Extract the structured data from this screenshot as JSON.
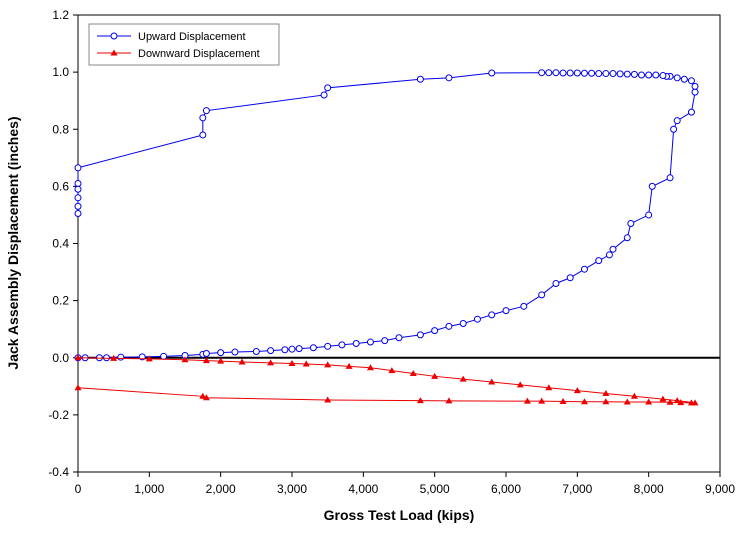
{
  "chart_data": {
    "type": "line",
    "xlabel": "Gross Test Load (kips)",
    "ylabel": "Jack Assembly Displacement (inches)",
    "xlim": [
      0,
      9000
    ],
    "ylim": [
      -0.4,
      1.2
    ],
    "x_ticks": [
      "0",
      "1,000",
      "2,000",
      "3,000",
      "4,000",
      "5,000",
      "6,000",
      "7,000",
      "8,000",
      "9,000"
    ],
    "y_ticks": [
      "-0.4",
      "-0.2",
      "0.0",
      "0.2",
      "0.4",
      "0.6",
      "0.8",
      "1.0",
      "1.2"
    ],
    "x_tick_values": [
      0,
      1000,
      2000,
      3000,
      4000,
      5000,
      6000,
      7000,
      8000,
      9000
    ],
    "y_tick_values": [
      -0.4,
      -0.2,
      0.0,
      0.2,
      0.4,
      0.6,
      0.8,
      1.0,
      1.2
    ],
    "grid": false,
    "zero_line": true,
    "legend_position": "top-left",
    "series": [
      {
        "name": "Upward Displacement",
        "color": "#0000ee",
        "marker": "circle",
        "x": [
          0,
          100,
          300,
          400,
          600,
          900,
          1200,
          1500,
          1750,
          1800,
          2000,
          2200,
          2500,
          2700,
          2900,
          3000,
          3100,
          3300,
          3500,
          3700,
          3900,
          4100,
          4300,
          4500,
          4800,
          5000,
          5200,
          5400,
          5600,
          5800,
          6000,
          6250,
          6500,
          6700,
          6900,
          7100,
          7300,
          7450,
          7500,
          7700,
          7750,
          8000,
          8050,
          8300,
          8350,
          8400,
          8600,
          8650,
          8650,
          8600,
          8500,
          8400,
          8300,
          8250,
          8200,
          8100,
          8000,
          7900,
          7800,
          7700,
          7600,
          7500,
          7400,
          7300,
          7200,
          7100,
          7000,
          6900,
          6800,
          6700,
          6600,
          6500,
          5800,
          5200,
          4800,
          3500,
          3450,
          1800,
          1750,
          1750,
          0,
          0,
          0,
          0,
          0,
          0
        ],
        "y": [
          0.0,
          0.0,
          0.0,
          0.0,
          0.002,
          0.003,
          0.005,
          0.008,
          0.012,
          0.015,
          0.018,
          0.02,
          0.022,
          0.025,
          0.028,
          0.03,
          0.032,
          0.035,
          0.04,
          0.045,
          0.05,
          0.055,
          0.06,
          0.07,
          0.08,
          0.095,
          0.11,
          0.12,
          0.135,
          0.15,
          0.165,
          0.18,
          0.22,
          0.26,
          0.28,
          0.31,
          0.34,
          0.36,
          0.38,
          0.42,
          0.47,
          0.5,
          0.6,
          0.63,
          0.8,
          0.83,
          0.86,
          0.93,
          0.95,
          0.97,
          0.975,
          0.98,
          0.985,
          0.985,
          0.988,
          0.99,
          0.99,
          0.99,
          0.992,
          0.993,
          0.994,
          0.995,
          0.995,
          0.995,
          0.996,
          0.996,
          0.997,
          0.997,
          0.997,
          0.998,
          0.998,
          0.998,
          0.997,
          0.98,
          0.975,
          0.945,
          0.92,
          0.865,
          0.84,
          0.78,
          0.665,
          0.61,
          0.59,
          0.56,
          0.53,
          0.505
        ]
      },
      {
        "name": "Downward Displacement",
        "color": "#ee0000",
        "marker": "triangle",
        "x": [
          0,
          500,
          1000,
          1500,
          1800,
          2000,
          2300,
          2700,
          3000,
          3200,
          3500,
          3800,
          4100,
          4400,
          4700,
          5000,
          5400,
          5800,
          6200,
          6600,
          7000,
          7400,
          7800,
          8200,
          8400,
          8650,
          8600,
          8450,
          8300,
          8000,
          7700,
          7400,
          7100,
          6800,
          6500,
          6300,
          5200,
          4800,
          3500,
          1800,
          1750,
          0
        ],
        "y": [
          0.0,
          -0.002,
          -0.004,
          -0.007,
          -0.01,
          -0.012,
          -0.015,
          -0.018,
          -0.02,
          -0.022,
          -0.025,
          -0.03,
          -0.035,
          -0.045,
          -0.055,
          -0.065,
          -0.075,
          -0.085,
          -0.095,
          -0.105,
          -0.115,
          -0.125,
          -0.135,
          -0.145,
          -0.15,
          -0.158,
          -0.158,
          -0.157,
          -0.156,
          -0.155,
          -0.155,
          -0.154,
          -0.154,
          -0.153,
          -0.152,
          -0.152,
          -0.151,
          -0.15,
          -0.148,
          -0.14,
          -0.135,
          -0.105
        ]
      }
    ]
  }
}
